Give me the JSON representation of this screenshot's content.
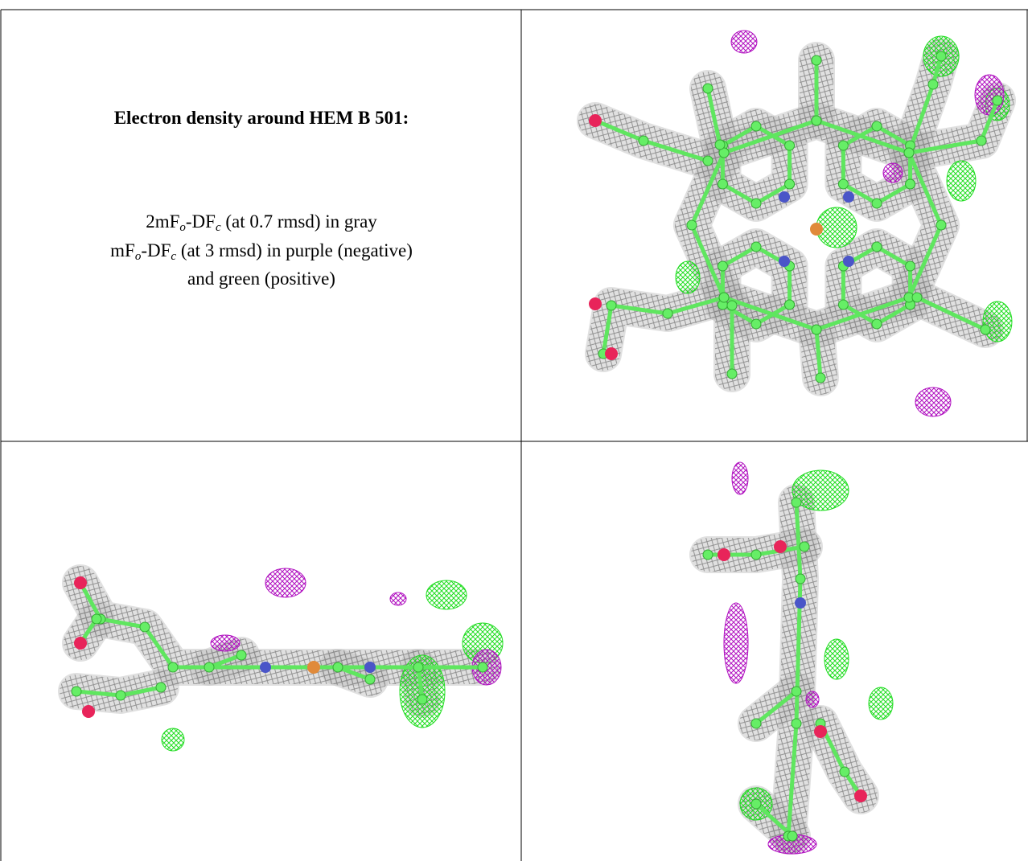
{
  "caption": {
    "title": "Electron density around HEM B 501:",
    "lines": [
      [
        "2mF",
        "o",
        "-DF",
        "c",
        " (at 0.7 rmsd) in gray"
      ],
      [
        "mF",
        "o",
        "-DF",
        "c",
        " (at 3 rmsd) in purple (negative)"
      ],
      [
        "and green (positive)"
      ]
    ]
  }
}
